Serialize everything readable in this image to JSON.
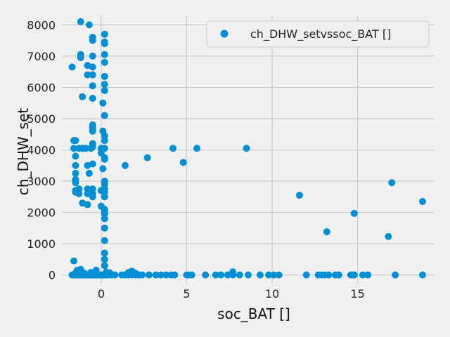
{
  "chart_data": {
    "type": "scatter",
    "title": "",
    "xlabel": "soc_BAT []",
    "ylabel": "ch_DHW_set",
    "xlim": [
      -2.3,
      19.5
    ],
    "ylim": [
      -300,
      8300
    ],
    "xticks": [
      0,
      5,
      10,
      15
    ],
    "yticks": [
      0,
      1000,
      2000,
      3000,
      4000,
      5000,
      6000,
      7000,
      8000
    ],
    "grid": true,
    "legend": {
      "position": "top-right",
      "entries": [
        "ch_DHW_setvssoc_BAT []"
      ]
    },
    "colors": {
      "series": "#008fd5",
      "background": "#f0f0f0",
      "grid": "#cbcbcb"
    },
    "series": [
      {
        "name": "ch_DHW_setvssoc_BAT []",
        "points": [
          [
            -1.2,
            8100
          ],
          [
            -0.7,
            8000
          ],
          [
            0.2,
            7700
          ],
          [
            -0.5,
            7600
          ],
          [
            -0.5,
            7500
          ],
          [
            0.2,
            7450
          ],
          [
            0.2,
            7400
          ],
          [
            -1.2,
            7050
          ],
          [
            -1.2,
            6950
          ],
          [
            -0.5,
            7000
          ],
          [
            0.2,
            7050
          ],
          [
            0.2,
            6800
          ],
          [
            -1.7,
            6650
          ],
          [
            -0.8,
            6700
          ],
          [
            -0.5,
            6650
          ],
          [
            -0.8,
            6400
          ],
          [
            -0.5,
            6400
          ],
          [
            0.2,
            6350
          ],
          [
            -0.5,
            6050
          ],
          [
            0.2,
            6100
          ],
          [
            0.2,
            5900
          ],
          [
            -1.1,
            5700
          ],
          [
            -0.5,
            5650
          ],
          [
            0.1,
            5500
          ],
          [
            0.2,
            5100
          ],
          [
            -0.5,
            4800
          ],
          [
            -0.5,
            4700
          ],
          [
            -0.5,
            4600
          ],
          [
            0.1,
            4600
          ],
          [
            0.2,
            4450
          ],
          [
            0.2,
            4300
          ],
          [
            -1.6,
            4300
          ],
          [
            -1.5,
            4300
          ],
          [
            -1.6,
            4050
          ],
          [
            -1.3,
            4050
          ],
          [
            -1.1,
            4050
          ],
          [
            -0.9,
            4050
          ],
          [
            -0.6,
            4050
          ],
          [
            -0.5,
            4200
          ],
          [
            -0.5,
            4100
          ],
          [
            0.0,
            4050
          ],
          [
            0.2,
            4050
          ],
          [
            0.0,
            3900
          ],
          [
            0.2,
            3750
          ],
          [
            0.2,
            3700
          ],
          [
            -1.5,
            3800
          ],
          [
            -1.5,
            3500
          ],
          [
            -0.8,
            3500
          ],
          [
            -0.5,
            3550
          ],
          [
            0.1,
            3400
          ],
          [
            -1.5,
            3250
          ],
          [
            -0.7,
            3250
          ],
          [
            -1.5,
            3050
          ],
          [
            -1.5,
            2950
          ],
          [
            0.2,
            3000
          ],
          [
            0.2,
            2900
          ],
          [
            -1.5,
            2700
          ],
          [
            -1.5,
            2650
          ],
          [
            -1.3,
            2600
          ],
          [
            -0.8,
            2750
          ],
          [
            -0.7,
            2700
          ],
          [
            -0.5,
            2750
          ],
          [
            -0.8,
            2600
          ],
          [
            -0.5,
            2600
          ],
          [
            -0.5,
            2500
          ],
          [
            0.0,
            2700
          ],
          [
            0.2,
            2750
          ],
          [
            0.2,
            2650
          ],
          [
            0.2,
            2500
          ],
          [
            -1.3,
            2750
          ],
          [
            -1.1,
            2300
          ],
          [
            -0.8,
            2250
          ],
          [
            0.0,
            2200
          ],
          [
            0.2,
            2100
          ],
          [
            0.2,
            2050
          ],
          [
            0.2,
            1950
          ],
          [
            0.2,
            1800
          ],
          [
            0.2,
            1500
          ],
          [
            0.2,
            1100
          ],
          [
            0.2,
            700
          ],
          [
            0.2,
            500
          ],
          [
            0.2,
            300
          ],
          [
            -1.6,
            450
          ],
          [
            -1.4,
            150
          ],
          [
            -1.2,
            180
          ],
          [
            -0.3,
            150
          ],
          [
            1.4,
            3500
          ],
          [
            2.7,
            3750
          ],
          [
            4.2,
            4050
          ],
          [
            4.8,
            3600
          ],
          [
            5.6,
            4050
          ],
          [
            8.5,
            4050
          ],
          [
            11.6,
            2550
          ],
          [
            13.2,
            1380
          ],
          [
            14.8,
            1970
          ],
          [
            16.8,
            1230
          ],
          [
            17.0,
            2950
          ],
          [
            18.8,
            2350
          ],
          [
            -1.7,
            0
          ],
          [
            -1.6,
            0
          ],
          [
            -1.5,
            0
          ],
          [
            -1.4,
            0
          ],
          [
            -1.3,
            0
          ],
          [
            -1.2,
            0
          ],
          [
            -1.1,
            0
          ],
          [
            -1.0,
            0
          ],
          [
            -0.9,
            0
          ],
          [
            -0.8,
            0
          ],
          [
            -0.7,
            0
          ],
          [
            -0.6,
            0
          ],
          [
            -0.5,
            0
          ],
          [
            -0.4,
            0
          ],
          [
            -0.3,
            0
          ],
          [
            -0.2,
            0
          ],
          [
            -0.1,
            0
          ],
          [
            0.0,
            0
          ],
          [
            0.1,
            0
          ],
          [
            0.2,
            0
          ],
          [
            0.3,
            0
          ],
          [
            0.4,
            0
          ],
          [
            0.6,
            0
          ],
          [
            0.8,
            0
          ],
          [
            1.2,
            0
          ],
          [
            1.4,
            0
          ],
          [
            1.6,
            0
          ],
          [
            1.8,
            0
          ],
          [
            2.0,
            0
          ],
          [
            2.2,
            0
          ],
          [
            2.4,
            0
          ],
          [
            2.8,
            0
          ],
          [
            3.2,
            0
          ],
          [
            3.5,
            0
          ],
          [
            3.8,
            0
          ],
          [
            4.1,
            0
          ],
          [
            4.3,
            0
          ],
          [
            5.0,
            0
          ],
          [
            5.1,
            0
          ],
          [
            5.3,
            0
          ],
          [
            6.1,
            0
          ],
          [
            6.7,
            0
          ],
          [
            7.0,
            0
          ],
          [
            7.4,
            0
          ],
          [
            7.7,
            0
          ],
          [
            8.1,
            0
          ],
          [
            8.6,
            0
          ],
          [
            9.3,
            0
          ],
          [
            9.8,
            0
          ],
          [
            10.1,
            0
          ],
          [
            10.4,
            0
          ],
          [
            12.0,
            0
          ],
          [
            12.7,
            0
          ],
          [
            12.9,
            0
          ],
          [
            13.1,
            0
          ],
          [
            13.3,
            0
          ],
          [
            13.7,
            0
          ],
          [
            13.9,
            0
          ],
          [
            14.6,
            0
          ],
          [
            14.7,
            0
          ],
          [
            14.8,
            0
          ],
          [
            15.3,
            0
          ],
          [
            15.6,
            0
          ],
          [
            17.2,
            0
          ],
          [
            18.8,
            0
          ],
          [
            -1.5,
            60
          ],
          [
            -1.0,
            60
          ],
          [
            -0.6,
            80
          ],
          [
            -0.3,
            60
          ],
          [
            0.3,
            90
          ],
          [
            0.5,
            70
          ],
          [
            1.6,
            80
          ],
          [
            1.8,
            120
          ],
          [
            2.0,
            60
          ],
          [
            7.7,
            100
          ]
        ]
      }
    ]
  }
}
